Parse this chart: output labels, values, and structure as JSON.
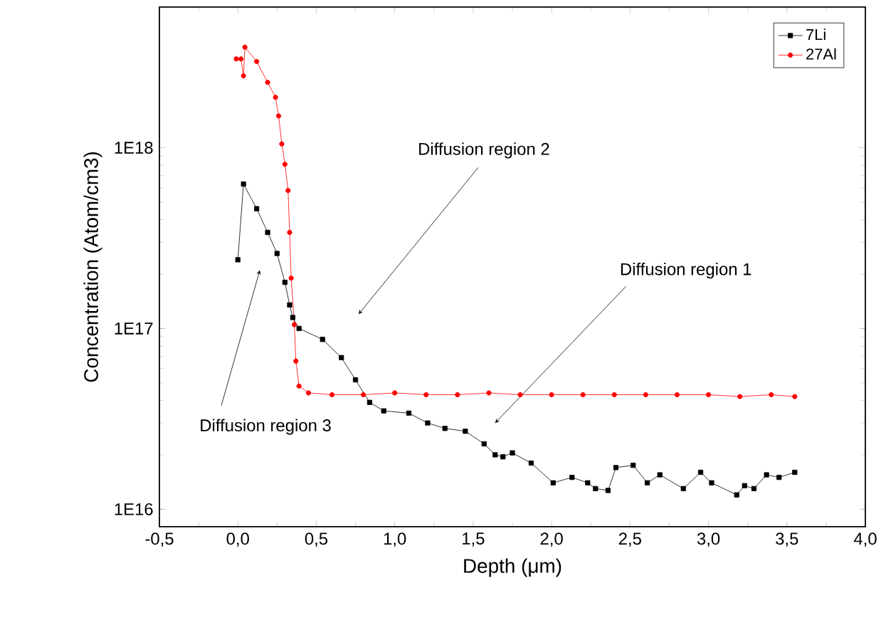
{
  "chart_data": {
    "type": "line",
    "xlabel": "Depth (μm)",
    "ylabel": "Concentration (Atom/cm3)",
    "log": "y",
    "legend": "top right",
    "line_style": "solid",
    "xlim": [
      -0.5,
      4.0
    ],
    "xticks": [
      {
        "value": -0.5,
        "label": "-0,5"
      },
      {
        "value": 0.0,
        "label": "0,0"
      },
      {
        "value": 0.5,
        "label": "0,5"
      },
      {
        "value": 1.0,
        "label": "1,0"
      },
      {
        "value": 1.5,
        "label": "1,5"
      },
      {
        "value": 2.0,
        "label": "2,0"
      },
      {
        "value": 2.5,
        "label": "2,5"
      },
      {
        "value": 3.0,
        "label": "3,0"
      },
      {
        "value": 3.5,
        "label": "3,5"
      },
      {
        "value": 4.0,
        "label": "4,0"
      }
    ],
    "ylim": [
      8000000000000000.0,
      6e+18
    ],
    "yticks": [
      {
        "value": 1e+16,
        "label": "1E16"
      },
      {
        "value": 1e+17,
        "label": "1E17"
      },
      {
        "value": 1e+18,
        "label": "1E18"
      }
    ],
    "series": [
      {
        "name": "7Li",
        "color": "#000000",
        "marker": "square",
        "x": [
          0.0,
          0.036,
          0.12,
          0.19,
          0.25,
          0.3,
          0.33,
          0.35,
          0.39,
          0.54,
          0.66,
          0.75,
          0.84,
          0.93,
          1.09,
          1.21,
          1.32,
          1.45,
          1.57,
          1.64,
          1.69,
          1.75,
          1.87,
          2.01,
          2.13,
          2.23,
          2.28,
          2.36,
          2.41,
          2.52,
          2.61,
          2.69,
          2.84,
          2.95,
          3.02,
          3.18,
          3.23,
          3.29,
          3.37,
          3.45,
          3.55
        ],
        "values": [
          2.4e+17,
          6.3e+17,
          4.6e+17,
          3.4e+17,
          2.6e+17,
          1.8e+17,
          1.35e+17,
          1.15e+17,
          1e+17,
          8.7e+16,
          6.9e+16,
          5.2e+16,
          3.9e+16,
          3.5e+16,
          3.4e+16,
          3e+16,
          2.8e+16,
          2.7e+16,
          2.3e+16,
          2e+16,
          1.95e+16,
          2.05e+16,
          1.8e+16,
          1.4e+16,
          1.5e+16,
          1.4e+16,
          1.3e+16,
          1.27e+16,
          1.7e+16,
          1.75e+16,
          1.4e+16,
          1.55e+16,
          1.3e+16,
          1.6e+16,
          1.4e+16,
          1.2e+16,
          1.35e+16,
          1.3e+16,
          1.55e+16,
          1.5e+16,
          1.6e+16
        ]
      },
      {
        "name": "27Al",
        "color": "#ff0000",
        "marker": "circle",
        "x": [
          -0.01,
          0.02,
          0.036,
          0.045,
          0.12,
          0.19,
          0.24,
          0.26,
          0.28,
          0.3,
          0.32,
          0.33,
          0.34,
          0.36,
          0.37,
          0.39,
          0.45,
          0.6,
          0.8,
          1.0,
          1.2,
          1.4,
          1.6,
          1.8,
          2.0,
          2.2,
          2.4,
          2.6,
          2.8,
          3.0,
          3.2,
          3.4,
          3.55
        ],
        "values": [
          3.1e+18,
          3.1e+18,
          2.5e+18,
          3.6e+18,
          3e+18,
          2.3e+18,
          1.9e+18,
          1.5e+18,
          1.05e+18,
          8.1e+17,
          5.8e+17,
          3.4e+17,
          1.9e+17,
          1.05e+17,
          6.6e+16,
          4.8e+16,
          4.4e+16,
          4.3e+16,
          4.3e+16,
          4.4e+16,
          4.3e+16,
          4.3e+16,
          4.4e+16,
          4.3e+16,
          4.3e+16,
          4.3e+16,
          4.3e+16,
          4.3e+16,
          4.3e+16,
          4.3e+16,
          4.2e+16,
          4.3e+16,
          4.2e+16
        ]
      }
    ],
    "annotations": [
      {
        "text": "Diffusion region 2",
        "x": 0.77,
        "y": 1.2e+17
      },
      {
        "text": "Diffusion region 1",
        "x": 1.64,
        "y": 3e+16
      },
      {
        "text": "Diffusion region 3",
        "x": 0.14,
        "y": 2.1e+17
      }
    ]
  }
}
